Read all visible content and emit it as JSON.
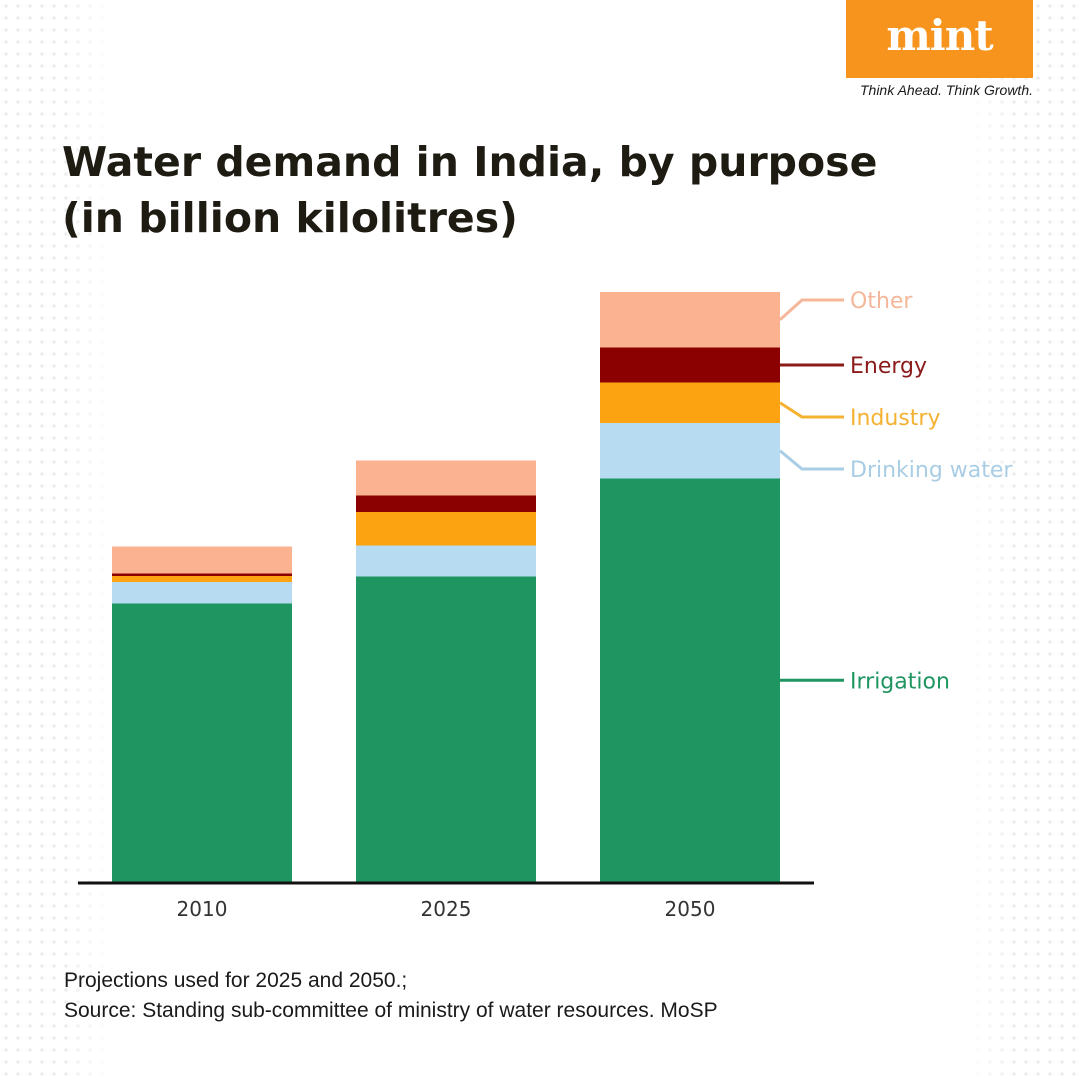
{
  "brand": {
    "logo_text": "mint",
    "tagline": "Think Ahead. Think Growth.",
    "colors": {
      "logo_bg": "#f7941e",
      "title": "#1e1b12"
    }
  },
  "title_line1": "Water demand in India, by purpose",
  "title_line2": "(in billion kilolitres)",
  "chart_data": {
    "type": "bar",
    "stacked": true,
    "title": "Water demand in India, by purpose (in billion kilolitres)",
    "categories": [
      "2010",
      "2025",
      "2050"
    ],
    "series": [
      {
        "name": "Irrigation",
        "color": "#1f9662",
        "label_color": "#1f9662",
        "values": [
          557,
          611,
          807
        ]
      },
      {
        "name": "Drinking water",
        "color": "#b7dbf0",
        "label_color": "#a9cde4",
        "values": [
          43,
          62,
          111
        ]
      },
      {
        "name": "Industry",
        "color": "#fca311",
        "label_color": "#f5b131",
        "values": [
          12,
          67,
          81
        ]
      },
      {
        "name": "Energy",
        "color": "#8b0000",
        "label_color": "#8b1a1a",
        "values": [
          5,
          33,
          70
        ]
      },
      {
        "name": "Other",
        "color": "#fbb291",
        "label_color": "#f5b79a",
        "values": [
          54,
          70,
          111
        ]
      }
    ],
    "legend_position": "right",
    "grid": false,
    "y_axis_visible": false
  },
  "footnote_line1": "Projections used for 2025 and 2050.;",
  "footnote_line2": "Source: Standing sub-committee of ministry of water resources. MoSP"
}
